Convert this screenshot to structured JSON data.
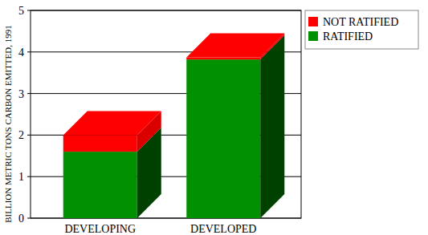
{
  "chart_data": {
    "type": "bar",
    "stacked": true,
    "y_label": "BILLION METRIC TONS CARBON EMITTED, 1991",
    "categories": [
      "DEVELOPING",
      "DEVELOPED"
    ],
    "series": [
      {
        "name": "RATIFIED",
        "color": "#009000",
        "values": [
          1.6,
          3.82
        ]
      },
      {
        "name": "NOT RATIFIED",
        "color": "#ff0000",
        "values": [
          0.4,
          0.05
        ]
      }
    ],
    "ylim": [
      0,
      5
    ],
    "yticks": [
      0,
      1,
      2,
      3,
      4,
      5
    ],
    "grid": true,
    "legend": "right"
  }
}
